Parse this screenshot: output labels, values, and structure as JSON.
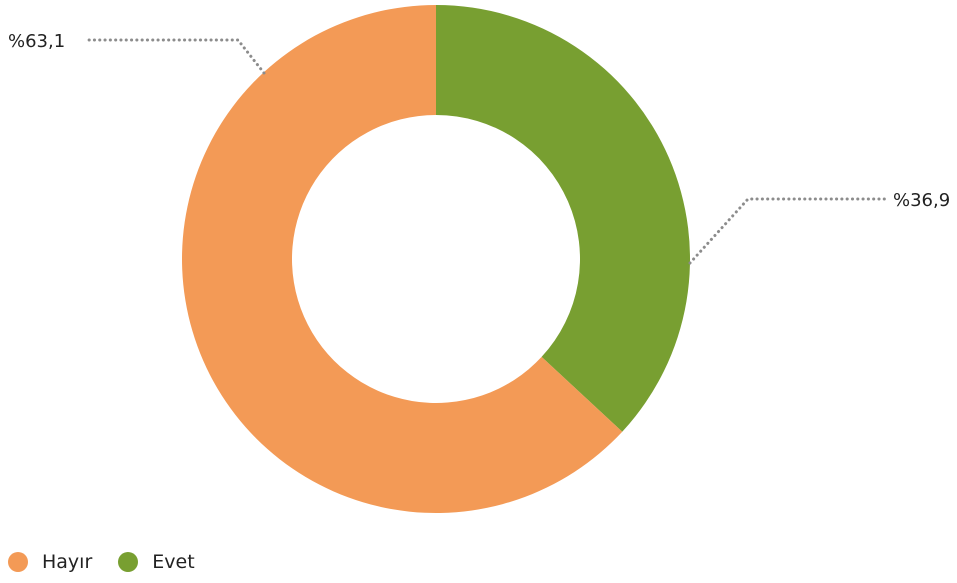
{
  "chart_data": {
    "type": "pie",
    "variant": "donut",
    "slices": [
      {
        "label": "Hayır",
        "value": 63.1,
        "display": "%63,1",
        "color": "#F39A56"
      },
      {
        "label": "Evet",
        "value": 36.9,
        "display": "%36,9",
        "color": "#789F31"
      }
    ],
    "legend": {
      "placement": "bottom-left"
    }
  }
}
